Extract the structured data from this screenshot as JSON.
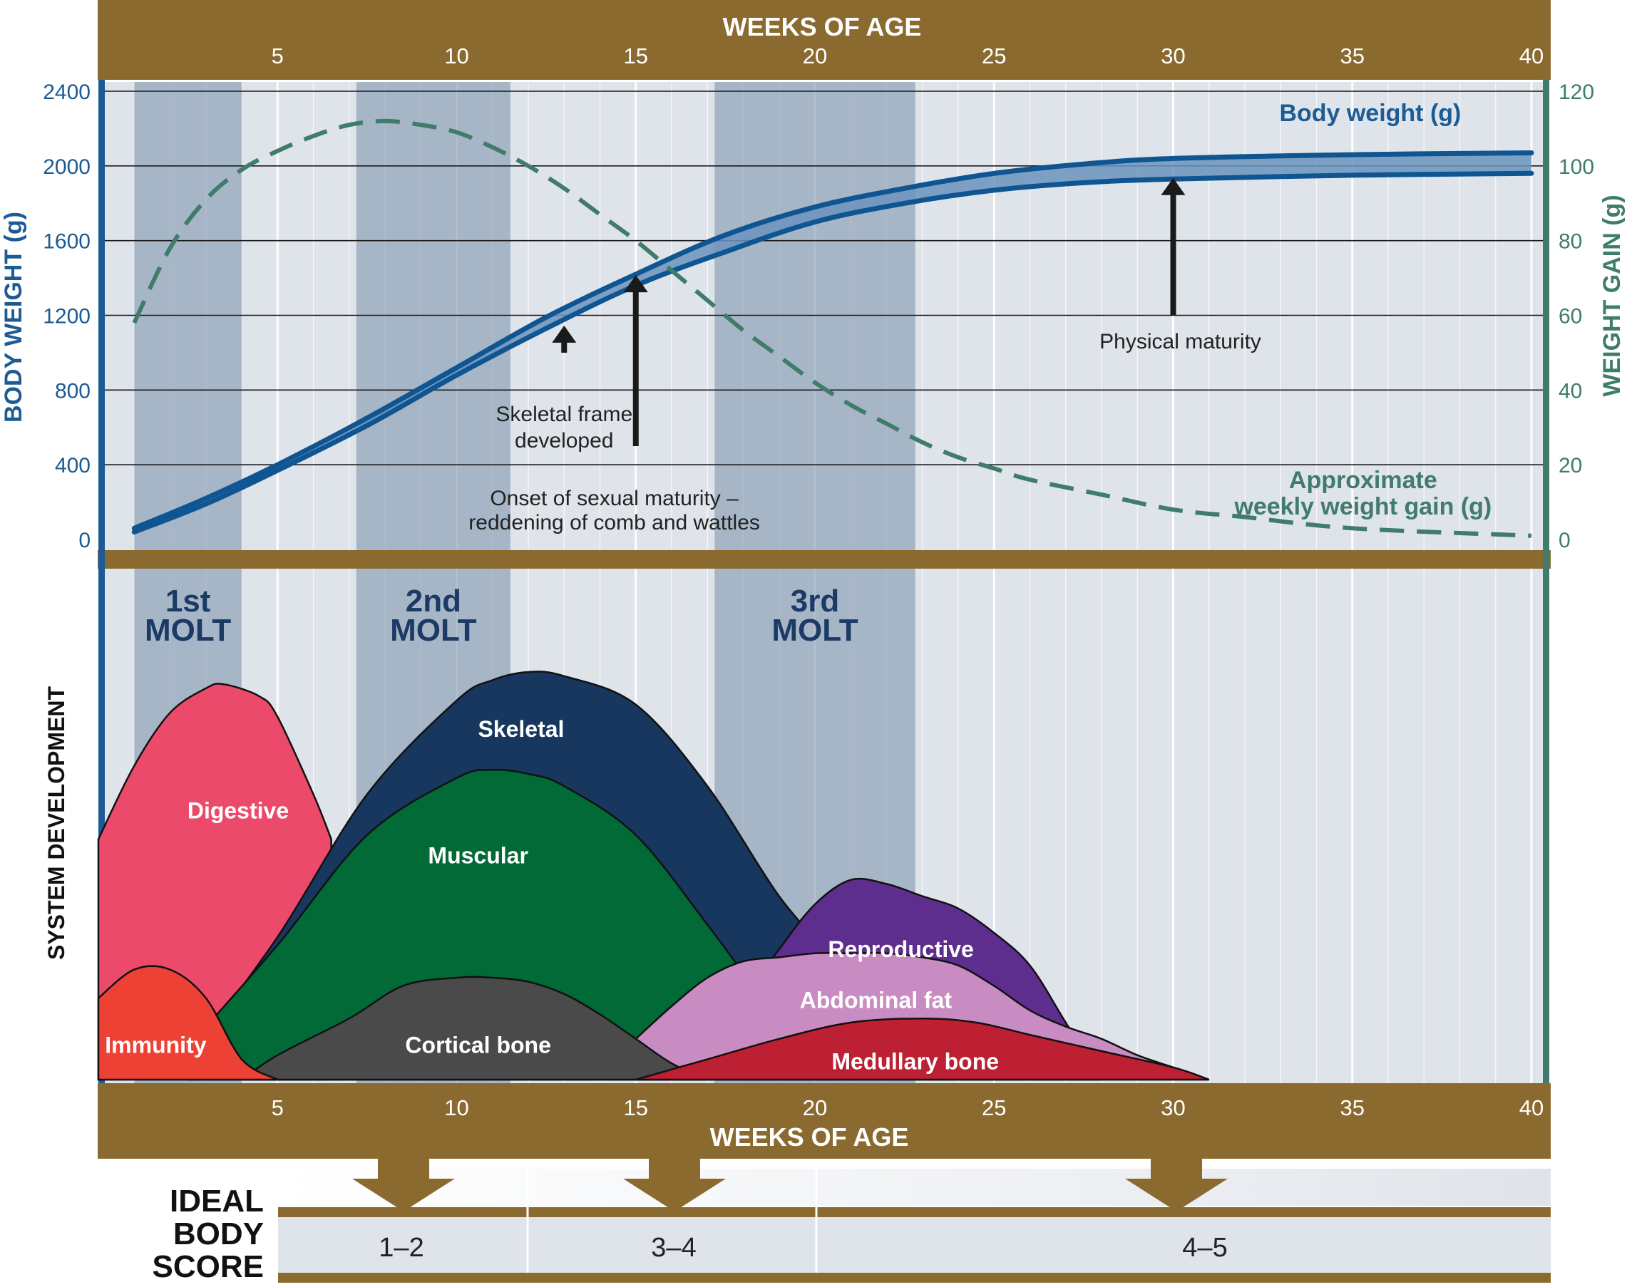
{
  "chart_data": {
    "type": "line",
    "x_axis": {
      "title": "WEEKS OF AGE",
      "range": [
        0,
        40
      ],
      "ticks": [
        5,
        10,
        15,
        20,
        25,
        30,
        35,
        40
      ]
    },
    "left_axis": {
      "title": "BODY WEIGHT (g)",
      "range": [
        0,
        2400
      ],
      "ticks": [
        0,
        400,
        800,
        1200,
        1600,
        2000,
        2400
      ]
    },
    "right_axis": {
      "title": "WEIGHT GAIN (g)",
      "range": [
        0,
        120
      ],
      "ticks": [
        0,
        20,
        40,
        60,
        80,
        100,
        120
      ]
    },
    "grid": true,
    "series": [
      {
        "name": "Body weight (g)",
        "axis": "left",
        "style": "band",
        "color": "#0f5592",
        "fill": "#6b93bd",
        "x": [
          1,
          3,
          5,
          7.5,
          10,
          12.5,
          15,
          17.5,
          20,
          22.5,
          25,
          27.5,
          30,
          35,
          40
        ],
        "upper": [
          60,
          220,
          400,
          650,
          920,
          1190,
          1420,
          1630,
          1780,
          1880,
          1960,
          2010,
          2040,
          2060,
          2070
        ],
        "lower": [
          40,
          190,
          370,
          610,
          880,
          1130,
          1360,
          1540,
          1700,
          1800,
          1870,
          1910,
          1930,
          1950,
          1960
        ]
      },
      {
        "name": "Approximate weekly weight gain (g)",
        "axis": "right",
        "style": "dashed",
        "color": "#3f7c6b",
        "x": [
          1,
          2,
          3,
          4,
          5,
          6,
          7,
          8,
          9,
          10,
          11,
          12,
          13,
          14,
          15,
          16,
          17,
          18,
          19,
          20,
          21,
          22,
          23,
          24,
          25,
          26,
          28,
          30,
          32,
          35,
          40
        ],
        "values": [
          58,
          78,
          91,
          99,
          104,
          108,
          111,
          112,
          111,
          109,
          105,
          100,
          94,
          87,
          80,
          72,
          64,
          56,
          49,
          42,
          36,
          31,
          26,
          22,
          19,
          16,
          12,
          8,
          6,
          3,
          1
        ]
      }
    ],
    "molt_bands": [
      {
        "label": [
          "1st",
          "MOLT"
        ],
        "start": 1,
        "end": 4
      },
      {
        "label": [
          "2nd",
          "MOLT"
        ],
        "start": 7.2,
        "end": 11.5
      },
      {
        "label": [
          "3rd",
          "MOLT"
        ],
        "start": 17.2,
        "end": 22.8
      }
    ],
    "right_legend": [
      "Approximate",
      "weekly weight gain (g)"
    ],
    "annotations": [
      {
        "text": "Body weight (g)",
        "week": 35.5,
        "weight": 2240
      },
      {
        "lines": [
          "Skeletal frame",
          "developed"
        ],
        "arrow_week": 13,
        "arrow_from": 1000,
        "arrow_to": 1130
      },
      {
        "lines": [
          "Onset of sexual maturity –",
          "reddening of comb and wattles"
        ],
        "arrow_week": 15,
        "arrow_from": 500,
        "arrow_to": 1400
      },
      {
        "lines": [
          "Physical maturity"
        ],
        "arrow_week": 30,
        "arrow_from": 1200,
        "arrow_to": 1920
      }
    ],
    "system_development": {
      "title": "SYSTEM DEVELOPMENT",
      "areas": [
        {
          "name": "Digestive",
          "color": "#ec4a6a",
          "x": [
            0,
            1,
            2,
            3,
            3.5,
            4.5,
            5,
            6,
            6.5
          ],
          "y": [
            0.59,
            0.77,
            0.9,
            0.96,
            0.97,
            0.94,
            0.89,
            0.7,
            0.59
          ]
        },
        {
          "name": "Skeletal",
          "color": "#17375f",
          "x": [
            2.5,
            5,
            7.5,
            10,
            11,
            12,
            13,
            15,
            17,
            19,
            20.5
          ],
          "y": [
            0.05,
            0.35,
            0.7,
            0.93,
            0.98,
            1.0,
            0.99,
            0.92,
            0.72,
            0.45,
            0.3
          ]
        },
        {
          "name": "Muscular",
          "color": "#026a37",
          "x": [
            2.5,
            5,
            7.5,
            10,
            11,
            12,
            13,
            15,
            17,
            18.5
          ],
          "y": [
            0.08,
            0.33,
            0.6,
            0.74,
            0.76,
            0.75,
            0.72,
            0.6,
            0.38,
            0.2
          ]
        },
        {
          "name": "Reproductive",
          "color": "#5e2e8e",
          "x": [
            18,
            19,
            20,
            21,
            22,
            23,
            24,
            25,
            26,
            27,
            28
          ],
          "y": [
            0.2,
            0.32,
            0.43,
            0.49,
            0.48,
            0.45,
            0.42,
            0.36,
            0.28,
            0.14,
            0.0
          ]
        },
        {
          "name": "Abdominal fat",
          "color": "#c88bc2",
          "x": [
            15,
            16,
            17,
            18,
            19,
            20,
            21,
            22,
            23,
            24,
            25,
            26,
            27,
            28,
            29,
            30,
            31
          ],
          "y": [
            0.1,
            0.18,
            0.25,
            0.29,
            0.3,
            0.31,
            0.31,
            0.31,
            0.3,
            0.28,
            0.23,
            0.17,
            0.13,
            0.1,
            0.06,
            0.03,
            0.0
          ]
        },
        {
          "name": "Cortical bone",
          "color": "#4a4a4a",
          "x": [
            4,
            5,
            7,
            8.5,
            10,
            11,
            12,
            13,
            14,
            15,
            16,
            17
          ],
          "y": [
            0.0,
            0.06,
            0.15,
            0.23,
            0.25,
            0.25,
            0.24,
            0.21,
            0.16,
            0.1,
            0.04,
            0.0
          ]
        },
        {
          "name": "Medullary bone",
          "color": "#bd1f33",
          "x": [
            15,
            17,
            19,
            21,
            23,
            24.5,
            26,
            28,
            30,
            31
          ],
          "y": [
            0.0,
            0.05,
            0.1,
            0.14,
            0.15,
            0.14,
            0.11,
            0.07,
            0.03,
            0.0
          ]
        },
        {
          "name": "Immunity",
          "color": "#ee4135",
          "x": [
            0,
            1,
            2,
            3,
            4,
            5
          ],
          "y": [
            0.2,
            0.27,
            0.27,
            0.2,
            0.05,
            0.0
          ]
        }
      ]
    },
    "ideal_body_score": {
      "title": [
        "IDEAL",
        "BODY",
        "SCORE"
      ],
      "ranges": [
        {
          "label": "1–2",
          "start": 0,
          "end": 12,
          "arrow_week": 8.5
        },
        {
          "label": "3–4",
          "start": 12,
          "end": 20,
          "arrow_week": 16
        },
        {
          "label": "4–5",
          "start": 20,
          "end": 41,
          "arrow_week": 30
        }
      ]
    }
  }
}
